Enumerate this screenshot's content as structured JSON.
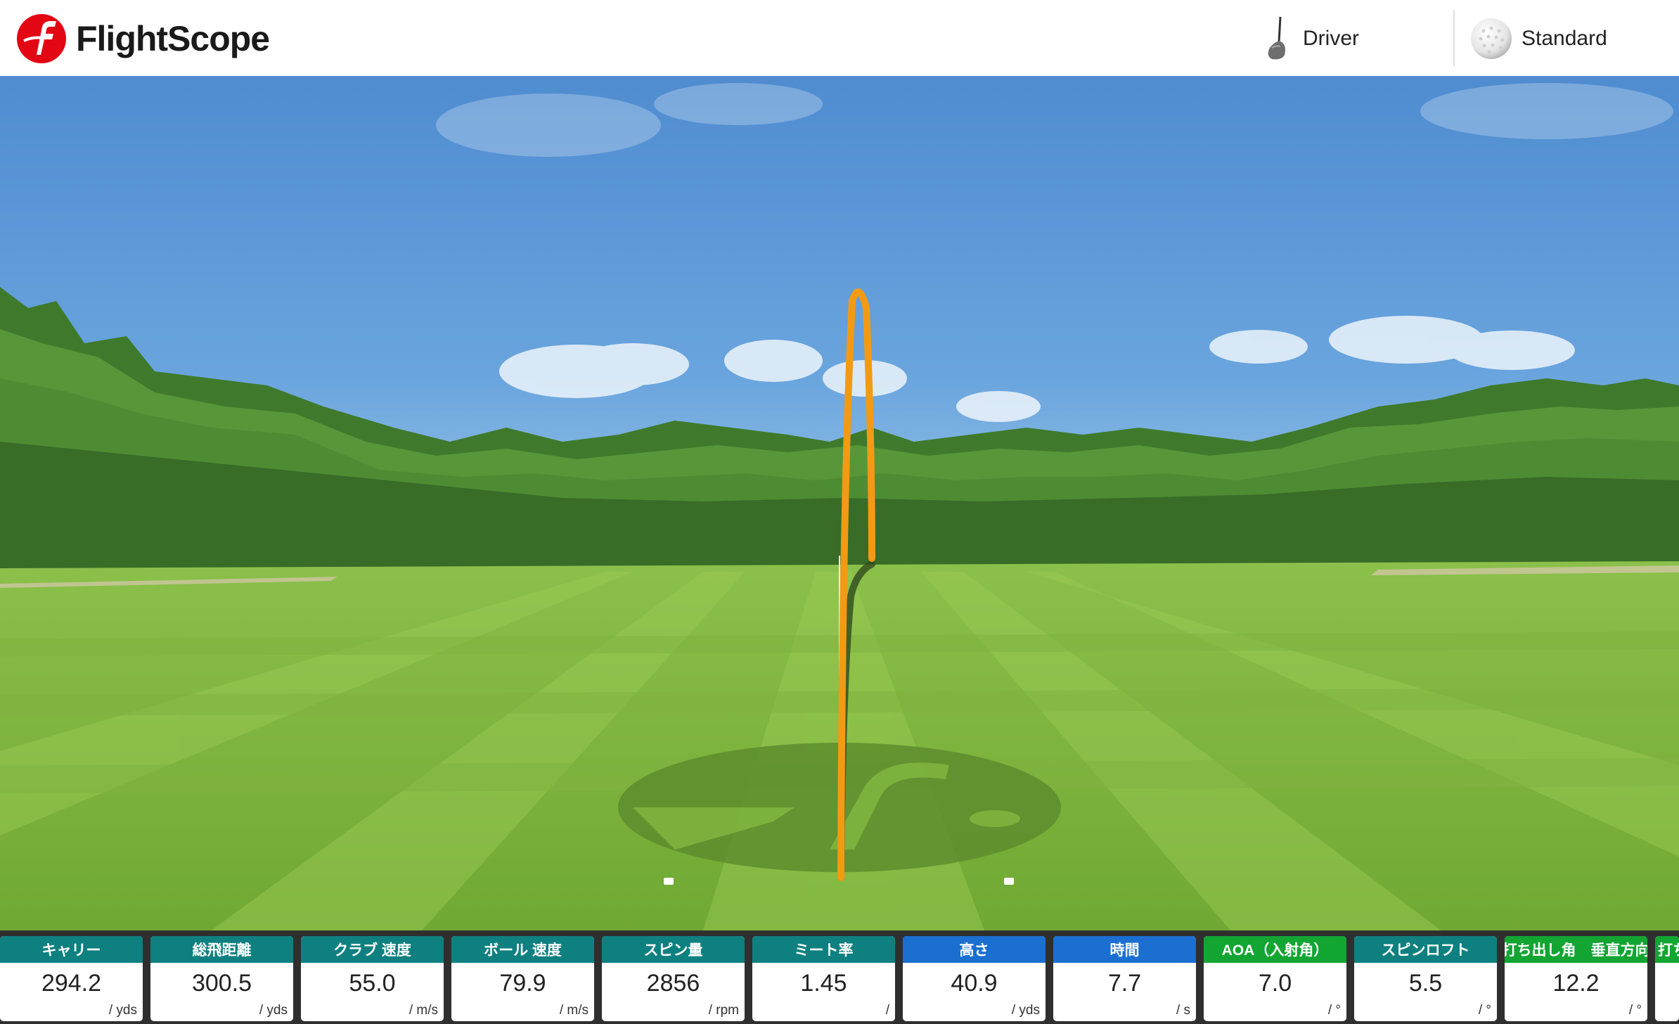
{
  "header": {
    "brand": "FlightScope",
    "club_label": "Driver",
    "ball_label": "Standard",
    "brand_color": "#e30613"
  },
  "metrics": [
    {
      "label": "キャリー",
      "value": "294.2",
      "unit": "/ yds",
      "color": "#0f8080"
    },
    {
      "label": "総飛距離",
      "value": "300.5",
      "unit": "/ yds",
      "color": "#0f8080"
    },
    {
      "label": "クラブ 速度",
      "value": "55.0",
      "unit": "/ m/s",
      "color": "#0f8080"
    },
    {
      "label": "ボール 速度",
      "value": "79.9",
      "unit": "/ m/s",
      "color": "#0f8080"
    },
    {
      "label": "スピン量",
      "value": "2856",
      "unit": "/ rpm",
      "color": "#0f8080"
    },
    {
      "label": "ミート率",
      "value": "1.45",
      "unit": "/",
      "color": "#0f8080"
    },
    {
      "label": "高さ",
      "value": "40.9",
      "unit": "/ yds",
      "color": "#1a6fd1"
    },
    {
      "label": "時間",
      "value": "7.7",
      "unit": "/ s",
      "color": "#1a6fd1"
    },
    {
      "label": "AOA（入射角）",
      "value": "7.0",
      "unit": "/ °",
      "color": "#12a532"
    },
    {
      "label": "スピンロフト",
      "value": "5.5",
      "unit": "/ °",
      "color": "#0f8080"
    },
    {
      "label": "打ち出し角　垂直方向",
      "value": "12.2",
      "unit": "/ °",
      "color": "#12a532"
    },
    {
      "label": "打ち",
      "value": "",
      "unit": "",
      "color": "#12a532"
    }
  ]
}
